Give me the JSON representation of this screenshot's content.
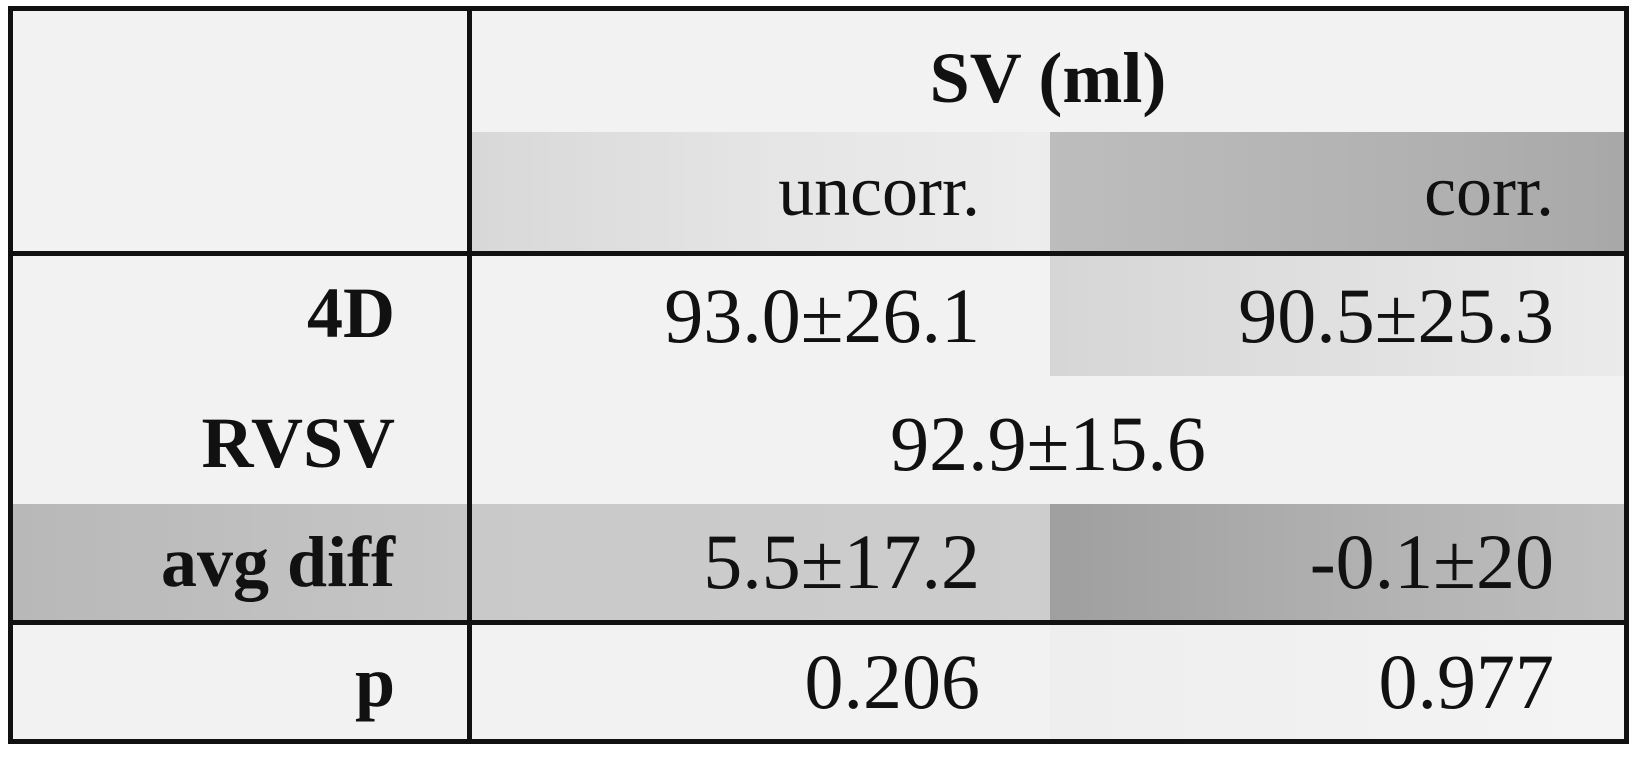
{
  "chart_data": {
    "type": "table",
    "title": "SV (ml)",
    "columns": [
      "uncorr.",
      "corr."
    ],
    "rows": [
      {
        "label": "4D",
        "values": [
          "93.0±26.1",
          "90.5±25.3"
        ]
      },
      {
        "label": "RVSV",
        "values": [
          "92.9±15.6"
        ],
        "spans_both_columns": true
      },
      {
        "label": "avg diff",
        "values": [
          "5.5±17.2",
          "-0.1±20"
        ]
      },
      {
        "label": "p",
        "values": [
          "0.206",
          "0.977"
        ]
      }
    ]
  },
  "colors": {
    "border": "#111111",
    "background": "#f2f2f2",
    "shade_light": "#e2e2e2",
    "shade_dark": "#b0b0b0"
  }
}
